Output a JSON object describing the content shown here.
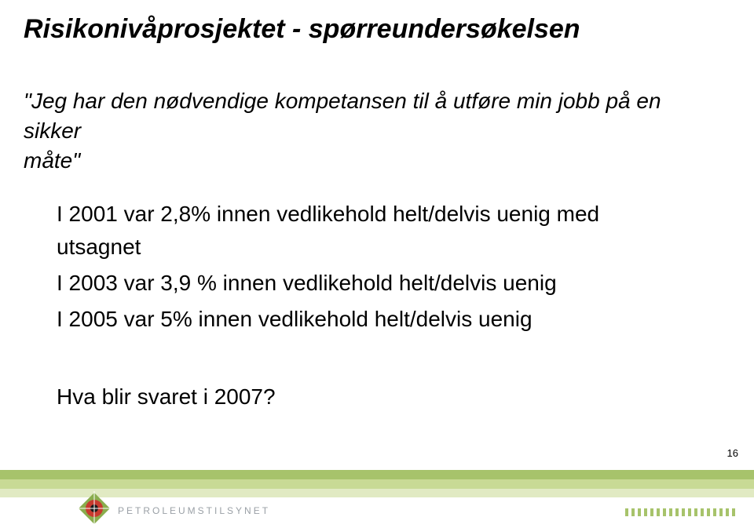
{
  "title": "Risikonivåprosjektet - spørreundersøkelsen",
  "quote_line1": "\"Jeg har den nødvendige kompetansen til å utføre min jobb på en sikker",
  "quote_line2": "måte\"",
  "line_2001": "I 2001 var 2,8% innen vedlikehold helt/delvis uenig med utsagnet",
  "line_2003": "I 2003 var 3,9 % innen vedlikehold helt/delvis uenig",
  "line_2005": "I 2005 var 5% innen vedlikehold helt/delvis uenig",
  "question_2007": "Hva blir svaret i 2007?",
  "page_number": "16",
  "footer": {
    "logo_text": "PETROLEUMSTILSYNET",
    "bar_colors": [
      "#a7c36b",
      "#c8da95",
      "#e1eac3"
    ],
    "logo_colors": {
      "outer": "#8aad4d",
      "ring": "#c73a2e",
      "center": "#1a1a1a"
    },
    "tick_color": "#a7c36b",
    "tick_count": 18
  }
}
